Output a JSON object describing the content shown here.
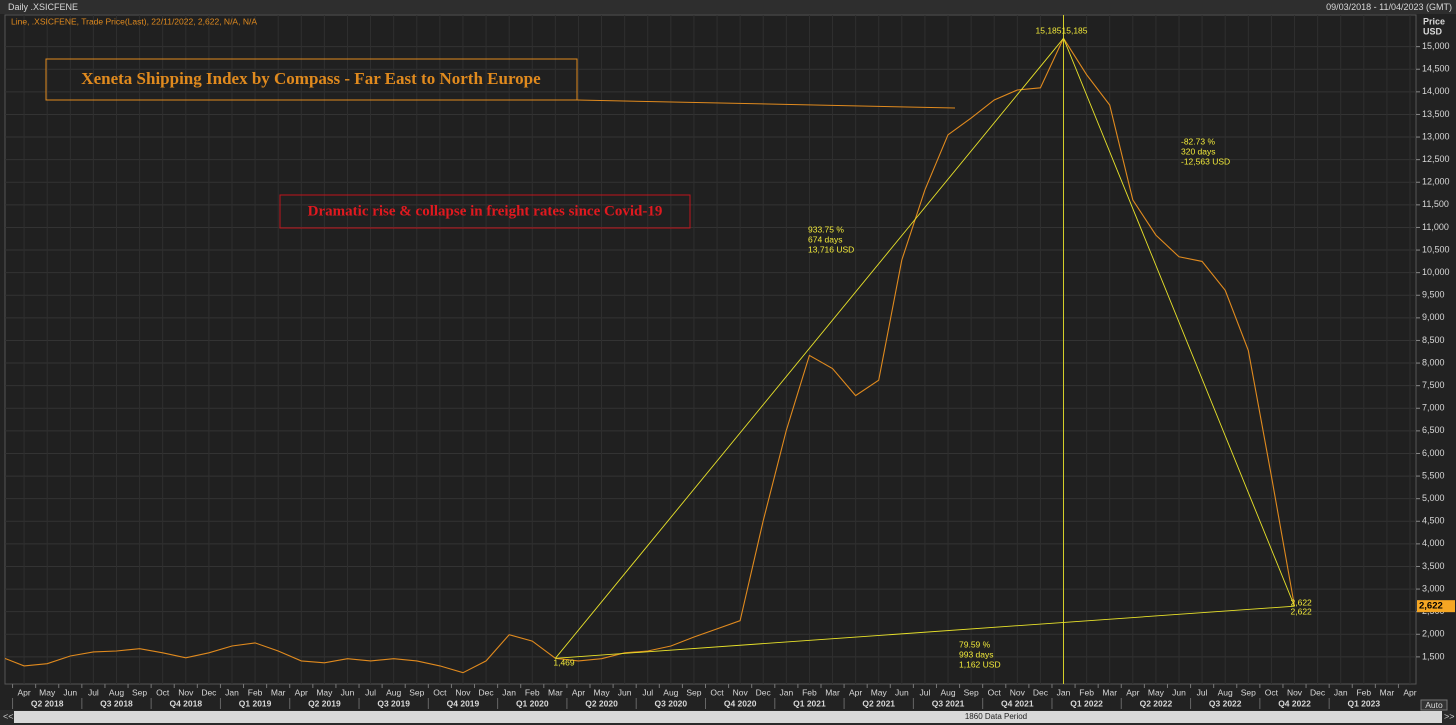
{
  "header": {
    "window_title": "Daily .XSICFENE",
    "date_range": "09/03/2018 - 11/04/2023 (GMT)",
    "legend_line": "Line, .XSICFENE, Trade Price(Last), 22/11/2022, 2,622, N/A, N/A",
    "axis_title": "Price",
    "axis_unit": "USD",
    "auto_button": "Auto",
    "data_period": "1860 Data Period"
  },
  "chart_data": {
    "type": "line",
    "title": "Xeneta Shipping Index by Compass - Far East to North Europe",
    "subtitle": "Dramatic rise & collapse in freight rates since Covid-19",
    "series": [
      {
        "color": "#e08a1e",
        "x": [
          "2018-03",
          "2018-04",
          "2018-05",
          "2018-06",
          "2018-07",
          "2018-08",
          "2018-09",
          "2018-10",
          "2018-11",
          "2018-12",
          "2019-01",
          "2019-02",
          "2019-03",
          "2019-04",
          "2019-05",
          "2019-06",
          "2019-07",
          "2019-08",
          "2019-09",
          "2019-10",
          "2019-11",
          "2019-12",
          "2020-01",
          "2020-02",
          "2020-03",
          "2020-04",
          "2020-05",
          "2020-06",
          "2020-07",
          "2020-08",
          "2020-09",
          "2020-10",
          "2020-11",
          "2020-12",
          "2021-01",
          "2021-02",
          "2021-03",
          "2021-04",
          "2021-05",
          "2021-06",
          "2021-07",
          "2021-08",
          "2021-09",
          "2021-10",
          "2021-11",
          "2021-12",
          "2022-01",
          "2022-02",
          "2022-03",
          "2022-04",
          "2022-05",
          "2022-06",
          "2022-07",
          "2022-08",
          "2022-09",
          "2022-10",
          "2022-11"
        ],
        "values": [
          1500,
          1300,
          1350,
          1520,
          1610,
          1630,
          1680,
          1590,
          1480,
          1590,
          1740,
          1810,
          1630,
          1410,
          1370,
          1460,
          1410,
          1460,
          1410,
          1300,
          1150,
          1410,
          1990,
          1850,
          1469,
          1410,
          1460,
          1590,
          1630,
          1740,
          1940,
          2120,
          2300,
          4510,
          6510,
          8170,
          7880,
          7280,
          7620,
          10280,
          11830,
          13050,
          13420,
          13820,
          14040,
          14090,
          15185,
          14380,
          13710,
          11610,
          10830,
          10350,
          10250,
          9610,
          8280,
          5500,
          2622
        ]
      }
    ],
    "xlim": [
      "2018-03",
      "2023-04"
    ],
    "ylim": [
      900,
      15700
    ],
    "grid": true,
    "yticks": [
      {
        "value": 1500,
        "label": "1,500"
      },
      {
        "value": 2000,
        "label": "2,000"
      },
      {
        "value": 2500,
        "label": "2,500"
      },
      {
        "value": 3000,
        "label": "3,000"
      },
      {
        "value": 3500,
        "label": "3,500"
      },
      {
        "value": 4000,
        "label": "4,000"
      },
      {
        "value": 4500,
        "label": "4,500"
      },
      {
        "value": 5000,
        "label": "5,000"
      },
      {
        "value": 5500,
        "label": "5,500"
      },
      {
        "value": 6000,
        "label": "6,000"
      },
      {
        "value": 6500,
        "label": "6,500"
      },
      {
        "value": 7000,
        "label": "7,000"
      },
      {
        "value": 7500,
        "label": "7,500"
      },
      {
        "value": 8000,
        "label": "8,000"
      },
      {
        "value": 8500,
        "label": "8,500"
      },
      {
        "value": 9000,
        "label": "9,000"
      },
      {
        "value": 9500,
        "label": "9,500"
      },
      {
        "value": 10000,
        "label": "10,000"
      },
      {
        "value": 10500,
        "label": "10,500"
      },
      {
        "value": 11000,
        "label": "11,000"
      },
      {
        "value": 11500,
        "label": "11,500"
      },
      {
        "value": 12000,
        "label": "12,000"
      },
      {
        "value": 12500,
        "label": "12,500"
      },
      {
        "value": 13000,
        "label": "13,000"
      },
      {
        "value": 13500,
        "label": "13,500"
      },
      {
        "value": 14000,
        "label": "14,000"
      },
      {
        "value": 14500,
        "label": "14,500"
      },
      {
        "value": 15000,
        "label": "15,000"
      }
    ],
    "xticks": [
      {
        "value": "2018-04",
        "label": "Apr"
      },
      {
        "value": "2018-05",
        "label": "May"
      },
      {
        "value": "2018-06",
        "label": "Jun"
      },
      {
        "value": "2018-07",
        "label": "Jul"
      },
      {
        "value": "2018-08",
        "label": "Aug"
      },
      {
        "value": "2018-09",
        "label": "Sep"
      },
      {
        "value": "2018-10",
        "label": "Oct"
      },
      {
        "value": "2018-11",
        "label": "Nov"
      },
      {
        "value": "2018-12",
        "label": "Dec"
      },
      {
        "value": "2019-01",
        "label": "Jan"
      },
      {
        "value": "2019-02",
        "label": "Feb"
      },
      {
        "value": "2019-03",
        "label": "Mar"
      },
      {
        "value": "2019-04",
        "label": "Apr"
      },
      {
        "value": "2019-05",
        "label": "May"
      },
      {
        "value": "2019-06",
        "label": "Jun"
      },
      {
        "value": "2019-07",
        "label": "Jul"
      },
      {
        "value": "2019-08",
        "label": "Aug"
      },
      {
        "value": "2019-09",
        "label": "Sep"
      },
      {
        "value": "2019-10",
        "label": "Oct"
      },
      {
        "value": "2019-11",
        "label": "Nov"
      },
      {
        "value": "2019-12",
        "label": "Dec"
      },
      {
        "value": "2020-01",
        "label": "Jan"
      },
      {
        "value": "2020-02",
        "label": "Feb"
      },
      {
        "value": "2020-03",
        "label": "Mar"
      },
      {
        "value": "2020-04",
        "label": "Apr"
      },
      {
        "value": "2020-05",
        "label": "May"
      },
      {
        "value": "2020-06",
        "label": "Jun"
      },
      {
        "value": "2020-07",
        "label": "Jul"
      },
      {
        "value": "2020-08",
        "label": "Aug"
      },
      {
        "value": "2020-09",
        "label": "Sep"
      },
      {
        "value": "2020-10",
        "label": "Oct"
      },
      {
        "value": "2020-11",
        "label": "Nov"
      },
      {
        "value": "2020-12",
        "label": "Dec"
      },
      {
        "value": "2021-01",
        "label": "Jan"
      },
      {
        "value": "2021-02",
        "label": "Feb"
      },
      {
        "value": "2021-03",
        "label": "Mar"
      },
      {
        "value": "2021-04",
        "label": "Apr"
      },
      {
        "value": "2021-05",
        "label": "May"
      },
      {
        "value": "2021-06",
        "label": "Jun"
      },
      {
        "value": "2021-07",
        "label": "Jul"
      },
      {
        "value": "2021-08",
        "label": "Aug"
      },
      {
        "value": "2021-09",
        "label": "Sep"
      },
      {
        "value": "2021-10",
        "label": "Oct"
      },
      {
        "value": "2021-11",
        "label": "Nov"
      },
      {
        "value": "2021-12",
        "label": "Dec"
      },
      {
        "value": "2022-01",
        "label": "Jan"
      },
      {
        "value": "2022-02",
        "label": "Feb"
      },
      {
        "value": "2022-03",
        "label": "Mar"
      },
      {
        "value": "2022-04",
        "label": "Apr"
      },
      {
        "value": "2022-05",
        "label": "May"
      },
      {
        "value": "2022-06",
        "label": "Jun"
      },
      {
        "value": "2022-07",
        "label": "Jul"
      },
      {
        "value": "2022-08",
        "label": "Aug"
      },
      {
        "value": "2022-09",
        "label": "Sep"
      },
      {
        "value": "2022-10",
        "label": "Oct"
      },
      {
        "value": "2022-11",
        "label": "Nov"
      },
      {
        "value": "2022-12",
        "label": "Dec"
      },
      {
        "value": "2023-01",
        "label": "Jan"
      },
      {
        "value": "2023-02",
        "label": "Feb"
      },
      {
        "value": "2023-03",
        "label": "Mar"
      },
      {
        "value": "2023-04",
        "label": "Apr"
      }
    ],
    "quarter_ticks": [
      {
        "value": "2018-04",
        "label": "Q2 2018"
      },
      {
        "value": "2018-07",
        "label": "Q3 2018"
      },
      {
        "value": "2018-10",
        "label": "Q4 2018"
      },
      {
        "value": "2019-01",
        "label": "Q1 2019"
      },
      {
        "value": "2019-04",
        "label": "Q2 2019"
      },
      {
        "value": "2019-07",
        "label": "Q3 2019"
      },
      {
        "value": "2019-10",
        "label": "Q4 2019"
      },
      {
        "value": "2020-01",
        "label": "Q1 2020"
      },
      {
        "value": "2020-04",
        "label": "Q2 2020"
      },
      {
        "value": "2020-07",
        "label": "Q3 2020"
      },
      {
        "value": "2020-10",
        "label": "Q4 2020"
      },
      {
        "value": "2021-01",
        "label": "Q1 2021"
      },
      {
        "value": "2021-04",
        "label": "Q2 2021"
      },
      {
        "value": "2021-07",
        "label": "Q3 2021"
      },
      {
        "value": "2021-10",
        "label": "Q4 2021"
      },
      {
        "value": "2022-01",
        "label": "Q1 2022"
      },
      {
        "value": "2022-04",
        "label": "Q2 2022"
      },
      {
        "value": "2022-07",
        "label": "Q3 2022"
      },
      {
        "value": "2022-10",
        "label": "Q4 2022"
      },
      {
        "value": "2023-01",
        "label": "Q1 2023"
      }
    ],
    "annotations": {
      "rise": [
        "933.75 %",
        "674 days",
        "13,716 USD"
      ],
      "fall": [
        "-82.73 %",
        "320 days",
        "-12,563 USD"
      ],
      "span": [
        "79.59 %",
        "993 days",
        "1,162 USD"
      ],
      "low": "1,469",
      "peak": [
        "15,185",
        "15,185"
      ],
      "end": [
        "2,622",
        "2,622"
      ],
      "last_price": "2,622"
    }
  }
}
